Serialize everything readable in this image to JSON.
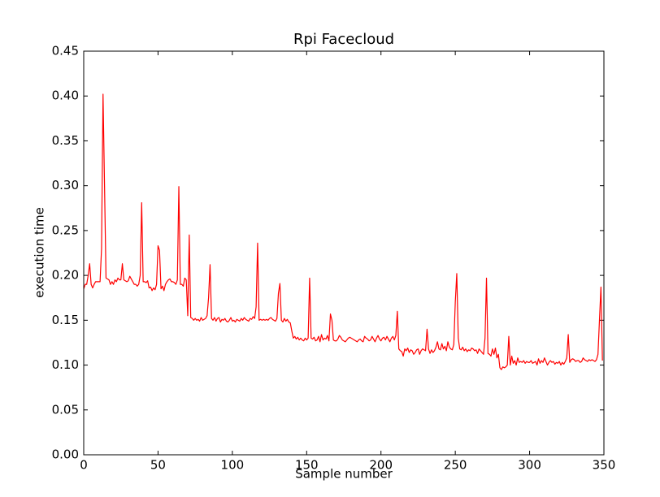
{
  "chart_data": {
    "type": "line",
    "title": "Rpi Facecloud",
    "x_label": "Sample number",
    "y_label": "execution time",
    "xlim": [
      0,
      350
    ],
    "ylim": [
      0,
      0.45
    ],
    "xticks": [
      0,
      50,
      100,
      150,
      200,
      250,
      300,
      350
    ],
    "yticks": [
      {
        "value": 0,
        "label": "0.00"
      },
      {
        "value": 0.05,
        "label": "0.05"
      },
      {
        "value": 0.1,
        "label": "0.10"
      },
      {
        "value": 0.15,
        "label": "0.15"
      },
      {
        "value": 0.2,
        "label": "0.20"
      },
      {
        "value": 0.25,
        "label": "0.25"
      },
      {
        "value": 0.3,
        "label": "0.30"
      },
      {
        "value": 0.35,
        "label": "0.35"
      },
      {
        "value": 0.4,
        "label": "0.40"
      },
      {
        "value": 0.45,
        "label": "0.45"
      }
    ],
    "grid": false,
    "x": [
      0,
      1,
      2,
      3,
      4,
      5,
      6,
      7,
      8,
      9,
      10,
      11,
      12,
      13,
      14,
      15,
      16,
      17,
      18,
      19,
      20,
      21,
      22,
      23,
      24,
      25,
      26,
      27,
      28,
      29,
      30,
      31,
      32,
      33,
      34,
      35,
      36,
      37,
      38,
      39,
      40,
      41,
      42,
      43,
      44,
      45,
      46,
      47,
      48,
      49,
      50,
      51,
      52,
      53,
      54,
      55,
      56,
      57,
      58,
      59,
      60,
      61,
      62,
      63,
      64,
      65,
      66,
      67,
      68,
      69,
      70,
      71,
      72,
      73,
      74,
      75,
      76,
      77,
      78,
      79,
      80,
      81,
      82,
      83,
      84,
      85,
      86,
      87,
      88,
      89,
      90,
      91,
      92,
      93,
      94,
      95,
      96,
      97,
      98,
      99,
      100,
      101,
      102,
      103,
      104,
      105,
      106,
      107,
      108,
      109,
      110,
      111,
      112,
      113,
      114,
      115,
      116,
      117,
      118,
      119,
      120,
      121,
      122,
      123,
      124,
      125,
      126,
      127,
      128,
      129,
      130,
      131,
      132,
      133,
      134,
      135,
      136,
      137,
      138,
      139,
      140,
      141,
      142,
      143,
      144,
      145,
      146,
      147,
      148,
      149,
      150,
      151,
      152,
      153,
      154,
      155,
      156,
      157,
      158,
      159,
      160,
      161,
      162,
      163,
      164,
      165,
      166,
      167,
      168,
      169,
      170,
      171,
      172,
      173,
      174,
      175,
      176,
      177,
      178,
      179,
      180,
      181,
      182,
      183,
      184,
      185,
      186,
      187,
      188,
      189,
      190,
      191,
      192,
      193,
      194,
      195,
      196,
      197,
      198,
      199,
      200,
      201,
      202,
      203,
      204,
      205,
      206,
      207,
      208,
      209,
      210,
      211,
      212,
      213,
      214,
      215,
      216,
      217,
      218,
      219,
      220,
      221,
      222,
      223,
      224,
      225,
      226,
      227,
      228,
      229,
      230,
      231,
      232,
      233,
      234,
      235,
      236,
      237,
      238,
      239,
      240,
      241,
      242,
      243,
      244,
      245,
      246,
      247,
      248,
      249,
      250,
      251,
      252,
      253,
      254,
      255,
      256,
      257,
      258,
      259,
      260,
      261,
      262,
      263,
      264,
      265,
      266,
      267,
      268,
      269,
      270,
      271,
      272,
      273,
      274,
      275,
      276,
      277,
      278,
      279,
      280,
      281,
      282,
      283,
      284,
      285,
      286,
      287,
      288,
      289,
      290,
      291,
      292,
      293,
      294,
      295,
      296,
      297,
      298,
      299,
      300,
      301,
      302,
      303,
      304,
      305,
      306,
      307,
      308,
      309,
      310,
      311,
      312,
      313,
      314,
      315,
      316,
      317,
      318,
      319,
      320,
      321,
      322,
      323,
      324,
      325,
      326,
      327,
      328,
      329,
      330,
      331,
      332,
      333,
      334,
      335,
      336,
      337,
      338,
      339,
      340,
      341,
      342,
      343,
      344,
      345,
      346,
      347,
      348,
      349
    ],
    "series": [
      {
        "color": "#ff0000",
        "values": [
          0.185,
          0.19,
          0.19,
          0.2,
          0.213,
          0.19,
          0.186,
          0.19,
          0.193,
          0.193,
          0.193,
          0.193,
          0.23,
          0.402,
          0.3,
          0.197,
          0.196,
          0.195,
          0.19,
          0.193,
          0.19,
          0.195,
          0.193,
          0.197,
          0.195,
          0.195,
          0.213,
          0.195,
          0.194,
          0.193,
          0.194,
          0.199,
          0.196,
          0.193,
          0.19,
          0.19,
          0.188,
          0.19,
          0.2,
          0.281,
          0.193,
          0.193,
          0.192,
          0.194,
          0.186,
          0.187,
          0.183,
          0.186,
          0.184,
          0.19,
          0.233,
          0.228,
          0.185,
          0.188,
          0.183,
          0.19,
          0.193,
          0.195,
          0.196,
          0.193,
          0.193,
          0.192,
          0.19,
          0.195,
          0.299,
          0.19,
          0.19,
          0.188,
          0.197,
          0.195,
          0.155,
          0.245,
          0.153,
          0.152,
          0.15,
          0.152,
          0.15,
          0.151,
          0.149,
          0.153,
          0.15,
          0.151,
          0.152,
          0.155,
          0.175,
          0.212,
          0.152,
          0.15,
          0.153,
          0.149,
          0.152,
          0.153,
          0.148,
          0.151,
          0.15,
          0.152,
          0.149,
          0.148,
          0.15,
          0.153,
          0.149,
          0.15,
          0.148,
          0.151,
          0.15,
          0.149,
          0.152,
          0.15,
          0.153,
          0.151,
          0.15,
          0.149,
          0.152,
          0.151,
          0.154,
          0.152,
          0.165,
          0.236,
          0.15,
          0.151,
          0.15,
          0.151,
          0.15,
          0.151,
          0.15,
          0.152,
          0.153,
          0.151,
          0.15,
          0.149,
          0.152,
          0.18,
          0.191,
          0.15,
          0.148,
          0.152,
          0.149,
          0.151,
          0.148,
          0.147,
          0.138,
          0.13,
          0.132,
          0.129,
          0.131,
          0.128,
          0.13,
          0.128,
          0.127,
          0.13,
          0.128,
          0.13,
          0.197,
          0.13,
          0.129,
          0.131,
          0.127,
          0.128,
          0.132,
          0.126,
          0.134,
          0.128,
          0.13,
          0.129,
          0.133,
          0.127,
          0.157,
          0.15,
          0.128,
          0.127,
          0.127,
          0.129,
          0.133,
          0.131,
          0.128,
          0.127,
          0.126,
          0.128,
          0.13,
          0.131,
          0.13,
          0.129,
          0.128,
          0.127,
          0.126,
          0.128,
          0.129,
          0.127,
          0.126,
          0.132,
          0.13,
          0.129,
          0.127,
          0.128,
          0.132,
          0.129,
          0.126,
          0.13,
          0.133,
          0.129,
          0.127,
          0.13,
          0.131,
          0.128,
          0.132,
          0.129,
          0.126,
          0.13,
          0.132,
          0.128,
          0.133,
          0.16,
          0.118,
          0.116,
          0.115,
          0.11,
          0.118,
          0.116,
          0.119,
          0.114,
          0.117,
          0.116,
          0.112,
          0.114,
          0.117,
          0.118,
          0.112,
          0.116,
          0.118,
          0.117,
          0.116,
          0.14,
          0.118,
          0.113,
          0.117,
          0.114,
          0.116,
          0.12,
          0.126,
          0.118,
          0.117,
          0.124,
          0.118,
          0.121,
          0.116,
          0.126,
          0.12,
          0.118,
          0.117,
          0.123,
          0.17,
          0.202,
          0.13,
          0.118,
          0.117,
          0.12,
          0.116,
          0.118,
          0.115,
          0.117,
          0.116,
          0.119,
          0.118,
          0.116,
          0.117,
          0.113,
          0.118,
          0.116,
          0.114,
          0.112,
          0.13,
          0.197,
          0.113,
          0.112,
          0.11,
          0.118,
          0.112,
          0.119,
          0.108,
          0.112,
          0.097,
          0.095,
          0.098,
          0.097,
          0.098,
          0.1,
          0.132,
          0.1,
          0.11,
          0.102,
          0.105,
          0.1,
          0.108,
          0.103,
          0.104,
          0.103,
          0.105,
          0.102,
          0.104,
          0.103,
          0.103,
          0.105,
          0.102,
          0.103,
          0.104,
          0.1,
          0.107,
          0.102,
          0.105,
          0.103,
          0.108,
          0.104,
          0.1,
          0.103,
          0.105,
          0.103,
          0.104,
          0.101,
          0.103,
          0.102,
          0.104,
          0.1,
          0.103,
          0.101,
          0.104,
          0.108,
          0.134,
          0.103,
          0.106,
          0.107,
          0.106,
          0.104,
          0.105,
          0.105,
          0.103,
          0.104,
          0.108,
          0.106,
          0.105,
          0.104,
          0.106,
          0.105,
          0.106,
          0.105,
          0.104,
          0.106,
          0.112,
          0.15,
          0.187,
          0.105
        ]
      }
    ]
  }
}
